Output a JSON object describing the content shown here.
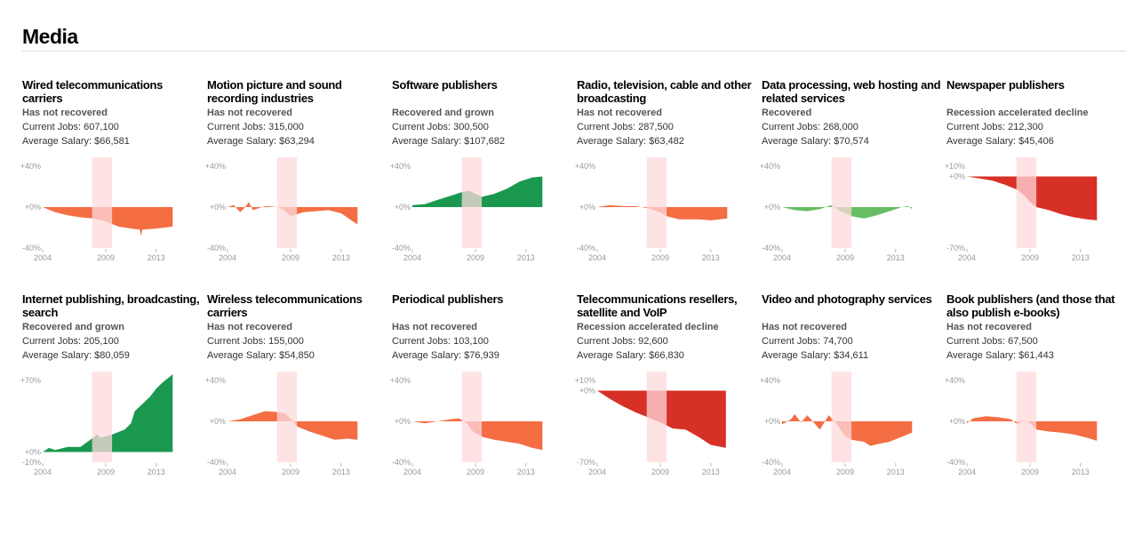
{
  "header": {
    "title": "Media"
  },
  "colors": {
    "Has not recovered": "#f46d43",
    "Recovered and grown": "#1a9850",
    "Recovered": "#66bd63",
    "Recession accelerated decline": "#d73027",
    "recession_band": "#fdd9dc"
  },
  "chart_data": {
    "type": "area",
    "x_ticks": [
      "2004",
      "2009",
      "2013"
    ],
    "recession": [
      2007.92,
      2009.5
    ],
    "panels": [
      {
        "title": "Wired telecommunications carriers",
        "status": "Has not recovered",
        "jobs": "Current Jobs: 607,100",
        "salary": "Average Salary: $66,581",
        "ylim": [
          -40,
          40
        ],
        "yticks": [
          "+40%",
          "+0%",
          "-40%"
        ],
        "x": [
          2004,
          2005,
          2006,
          2007,
          2008,
          2009,
          2010,
          2011,
          2011.7,
          2011.8,
          2011.9,
          2012,
          2013,
          2014.3
        ],
        "y": [
          0,
          -5,
          -8,
          -10,
          -11,
          -14,
          -19,
          -21,
          -22,
          -28,
          -22,
          -22,
          -21,
          -19
        ]
      },
      {
        "title": "Motion picture and sound recording industries",
        "status": "Has not recovered",
        "jobs": "Current Jobs: 315,000",
        "salary": "Average Salary: $63,294",
        "ylim": [
          -40,
          40
        ],
        "yticks": [
          "+40%",
          "+0%",
          "-40%"
        ],
        "x": [
          2004,
          2004.5,
          2005,
          2005.4,
          2005.7,
          2006,
          2007,
          2008,
          2008.5,
          2009,
          2010,
          2011,
          2012,
          2013,
          2013.7,
          2014.3
        ],
        "y": [
          0,
          2,
          -5,
          0,
          5,
          -3,
          1,
          0,
          -3,
          -9,
          -5,
          -4,
          -3,
          -6,
          -12,
          -17
        ]
      },
      {
        "title": "Software publishers",
        "status": "Recovered and grown",
        "jobs": "Current Jobs: 300,500",
        "salary": "Average Salary: $107,682",
        "ylim": [
          -40,
          40
        ],
        "yticks": [
          "+40%",
          "+0%",
          "-40%"
        ],
        "x": [
          2004,
          2005,
          2006,
          2007,
          2008,
          2008.5,
          2009.5,
          2010.5,
          2011.5,
          2012.5,
          2013.5,
          2014.3
        ],
        "y": [
          2,
          3,
          7,
          11,
          15,
          16,
          10,
          13,
          18,
          25,
          29,
          30
        ]
      },
      {
        "title": "Radio, television, cable and other broadcasting",
        "status": "Has not recovered",
        "jobs": "Current Jobs: 287,500",
        "salary": "Average Salary: $63,482",
        "ylim": [
          -40,
          40
        ],
        "yticks": [
          "+40%",
          "+0%",
          "-40%"
        ],
        "x": [
          2004,
          2005,
          2006,
          2007,
          2008,
          2009,
          2009.5,
          2010.5,
          2012,
          2013,
          2014.3
        ],
        "y": [
          0,
          2,
          1,
          1,
          -1,
          -5,
          -9,
          -12,
          -12,
          -13,
          -11
        ]
      },
      {
        "title": "Data processing, web hosting and related services",
        "status": "Recovered",
        "jobs": "Current Jobs: 268,000",
        "salary": "Average Salary: $70,574",
        "ylim": [
          -40,
          40
        ],
        "yticks": [
          "+40%",
          "+0%",
          "-40%"
        ],
        "x": [
          2004,
          2005,
          2006,
          2007,
          2007.9,
          2008.5,
          2009.5,
          2010.5,
          2011.5,
          2012.5,
          2013.5,
          2014,
          2014.3
        ],
        "y": [
          0,
          -3,
          -4,
          -2,
          2,
          -3,
          -9,
          -11,
          -8,
          -4,
          0,
          1,
          -2
        ]
      },
      {
        "title": "Newspaper publishers",
        "status": "Recession accelerated decline",
        "jobs": "Current Jobs: 212,300",
        "salary": "Average Salary: $45,406",
        "ylim": [
          -70,
          10
        ],
        "yticks": [
          "+10%",
          "+0%",
          "-70%"
        ],
        "x": [
          2004,
          2005,
          2006,
          2007,
          2008,
          2008.5,
          2009,
          2009.5,
          2010.5,
          2011.5,
          2012.5,
          2013.5,
          2014.3
        ],
        "y": [
          0,
          -2,
          -4,
          -8,
          -13,
          -18,
          -25,
          -30,
          -33,
          -37,
          -40,
          -42,
          -43
        ]
      },
      {
        "title": "Internet publishing, broadcasting, search",
        "status": "Recovered and grown",
        "jobs": "Current Jobs: 205,100",
        "salary": "Average Salary: $80,059",
        "ylim": [
          -10,
          70
        ],
        "yticks": [
          "+70%",
          "+0%",
          "-10%"
        ],
        "x": [
          2004,
          2004.5,
          2005,
          2006,
          2007,
          2008,
          2008.3,
          2008.6,
          2009.5,
          2010.5,
          2011,
          2011.3,
          2012,
          2012.5,
          2013,
          2013.5,
          2014.3
        ],
        "y": [
          0,
          4,
          2,
          5,
          5,
          14,
          17,
          14,
          17,
          22,
          28,
          40,
          48,
          54,
          62,
          68,
          76
        ]
      },
      {
        "title": "Wireless telecommunications carriers",
        "status": "Has not recovered",
        "jobs": "Current Jobs: 155,000",
        "salary": "Average Salary: $54,850",
        "ylim": [
          -40,
          40
        ],
        "yticks": [
          "+40%",
          "+0%",
          "-40%"
        ],
        "x": [
          2004,
          2005,
          2006,
          2007,
          2008,
          2008.5,
          2009,
          2009.5,
          2010.5,
          2011.5,
          2012.5,
          2013.5,
          2014.3
        ],
        "y": [
          0,
          2,
          6,
          10,
          9,
          8,
          3,
          -5,
          -10,
          -14,
          -18,
          -17,
          -18
        ]
      },
      {
        "title": "Periodical publishers",
        "status": "Has not recovered",
        "jobs": "Current Jobs: 103,100",
        "salary": "Average Salary: $76,939",
        "ylim": [
          -40,
          40
        ],
        "yticks": [
          "+40%",
          "+0%",
          "-40%"
        ],
        "x": [
          2004,
          2005,
          2006,
          2007,
          2007.7,
          2008.3,
          2008.8,
          2009.5,
          2010.5,
          2011.5,
          2012.5,
          2013.5,
          2014.3
        ],
        "y": [
          0,
          -2,
          0,
          2,
          3,
          -2,
          -10,
          -15,
          -18,
          -20,
          -22,
          -26,
          -28
        ]
      },
      {
        "title": "Telecommunications resellers, satellite and VoIP",
        "status": "Recession accelerated decline",
        "jobs": "Current Jobs: 92,600",
        "salary": "Average Salary: $66,830",
        "ylim": [
          -70,
          10
        ],
        "yticks": [
          "+10%",
          "+0%",
          "-70%"
        ],
        "x": [
          2004,
          2005,
          2006,
          2007,
          2008,
          2009,
          2010,
          2011,
          2012,
          2013,
          2014.2
        ],
        "y": [
          0,
          -8,
          -15,
          -21,
          -26,
          -31,
          -37,
          -38,
          -45,
          -53,
          -56
        ]
      },
      {
        "title": "Video and photography services",
        "status": "Has not recovered",
        "jobs": "Current Jobs: 74,700",
        "salary": "Average Salary: $34,611",
        "ylim": [
          -40,
          40
        ],
        "yticks": [
          "+40%",
          "+0%",
          "-40%"
        ],
        "x": [
          2004,
          2004.7,
          2005,
          2005.5,
          2006,
          2007,
          2007.7,
          2008.3,
          2009,
          2009.5,
          2010.5,
          2011,
          2011.7,
          2012.5,
          2013.5,
          2014.3
        ],
        "y": [
          -3,
          2,
          7,
          -1,
          6,
          -8,
          6,
          -2,
          -15,
          -18,
          -20,
          -24,
          -22,
          -20,
          -15,
          -11
        ]
      },
      {
        "title": "Book publishers (and those that also publish e-books)",
        "status": "Has not recovered",
        "jobs": "Current Jobs: 67,500",
        "salary": "Average Salary: $61,443",
        "ylim": [
          -40,
          40
        ],
        "yticks": [
          "+40%",
          "+0%",
          "-40%"
        ],
        "x": [
          2004,
          2004.5,
          2005.5,
          2006.5,
          2007.5,
          2008,
          2008.5,
          2009,
          2009.5,
          2010.5,
          2011.5,
          2012.5,
          2013.5,
          2014.3
        ],
        "y": [
          -2,
          3,
          5,
          4,
          2,
          -3,
          1,
          -2,
          -8,
          -10,
          -11,
          -13,
          -16,
          -19
        ]
      }
    ]
  }
}
